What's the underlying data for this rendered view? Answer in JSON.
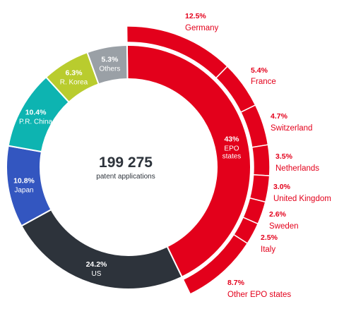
{
  "chart_data": {
    "type": "pie",
    "total_value": "199 275",
    "total_label": "patent applications",
    "slices": [
      {
        "label": "EPO\nstates",
        "pct_text": "43%",
        "value": 43.0,
        "color": "#e3001b",
        "label_color": "#ffffff"
      },
      {
        "label": "US",
        "pct_text": "24.2%",
        "value": 24.2,
        "color": "#2d333b",
        "label_color": "#ffffff"
      },
      {
        "label": "Japan",
        "pct_text": "10.8%",
        "value": 10.8,
        "color": "#3356c0",
        "label_color": "#ffffff"
      },
      {
        "label": "P.R. China",
        "pct_text": "10.4%",
        "value": 10.4,
        "color": "#0db4b1",
        "label_color": "#ffffff"
      },
      {
        "label": "R. Korea",
        "pct_text": "6.3%",
        "value": 6.3,
        "color": "#b9cc2e",
        "label_color": "#ffffff"
      },
      {
        "label": "Others",
        "pct_text": "5.3%",
        "value": 5.3,
        "color": "#9aa0a6",
        "label_color": "#ffffff"
      }
    ],
    "epo_breakdown": [
      {
        "label": "Germany",
        "pct_text": "12.5%",
        "value": 12.5
      },
      {
        "label": "France",
        "pct_text": "5.4%",
        "value": 5.4
      },
      {
        "label": "Switzerland",
        "pct_text": "4.7%",
        "value": 4.7
      },
      {
        "label": "Netherlands",
        "pct_text": "3.5%",
        "value": 3.5
      },
      {
        "label": "United Kingdom",
        "pct_text": "3.0%",
        "value": 3.0
      },
      {
        "label": "Sweden",
        "pct_text": "2.6%",
        "value": 2.6
      },
      {
        "label": "Italy",
        "pct_text": "2.5%",
        "value": 2.5
      },
      {
        "label": "Other EPO states",
        "pct_text": "8.7%",
        "value": 8.7
      }
    ],
    "outer_color": "#e3001b"
  }
}
